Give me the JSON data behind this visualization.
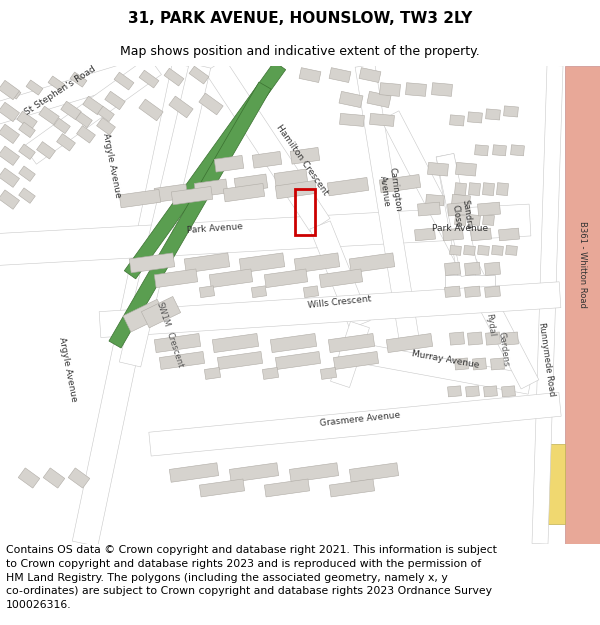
{
  "title": "31, PARK AVENUE, HOUNSLOW, TW3 2LY",
  "subtitle": "Map shows position and indicative extent of the property.",
  "title_fontsize": 11,
  "subtitle_fontsize": 9,
  "copyright_text": "Contains OS data © Crown copyright and database right 2021. This information is subject\nto Crown copyright and database rights 2023 and is reproduced with the permission of\nHM Land Registry. The polygons (including the associated geometry, namely x, y\nco-ordinates) are subject to Crown copyright and database rights 2023 Ordnance Survey\n100026316.",
  "copyright_fontsize": 7.8,
  "map_bg": "#f5f4f2",
  "road_color": "#ffffff",
  "road_outline": "#c8c8c8",
  "building_color": "#d6d3ce",
  "building_outline": "#b0aca6",
  "green_color": "#5a9e50",
  "green_outline": "#3a7030",
  "salmon_color": "#e8a898",
  "yellow_color": "#f0d870",
  "red_rect_color": "#cc0000",
  "fig_width": 6.0,
  "fig_height": 6.25,
  "dpi": 100
}
